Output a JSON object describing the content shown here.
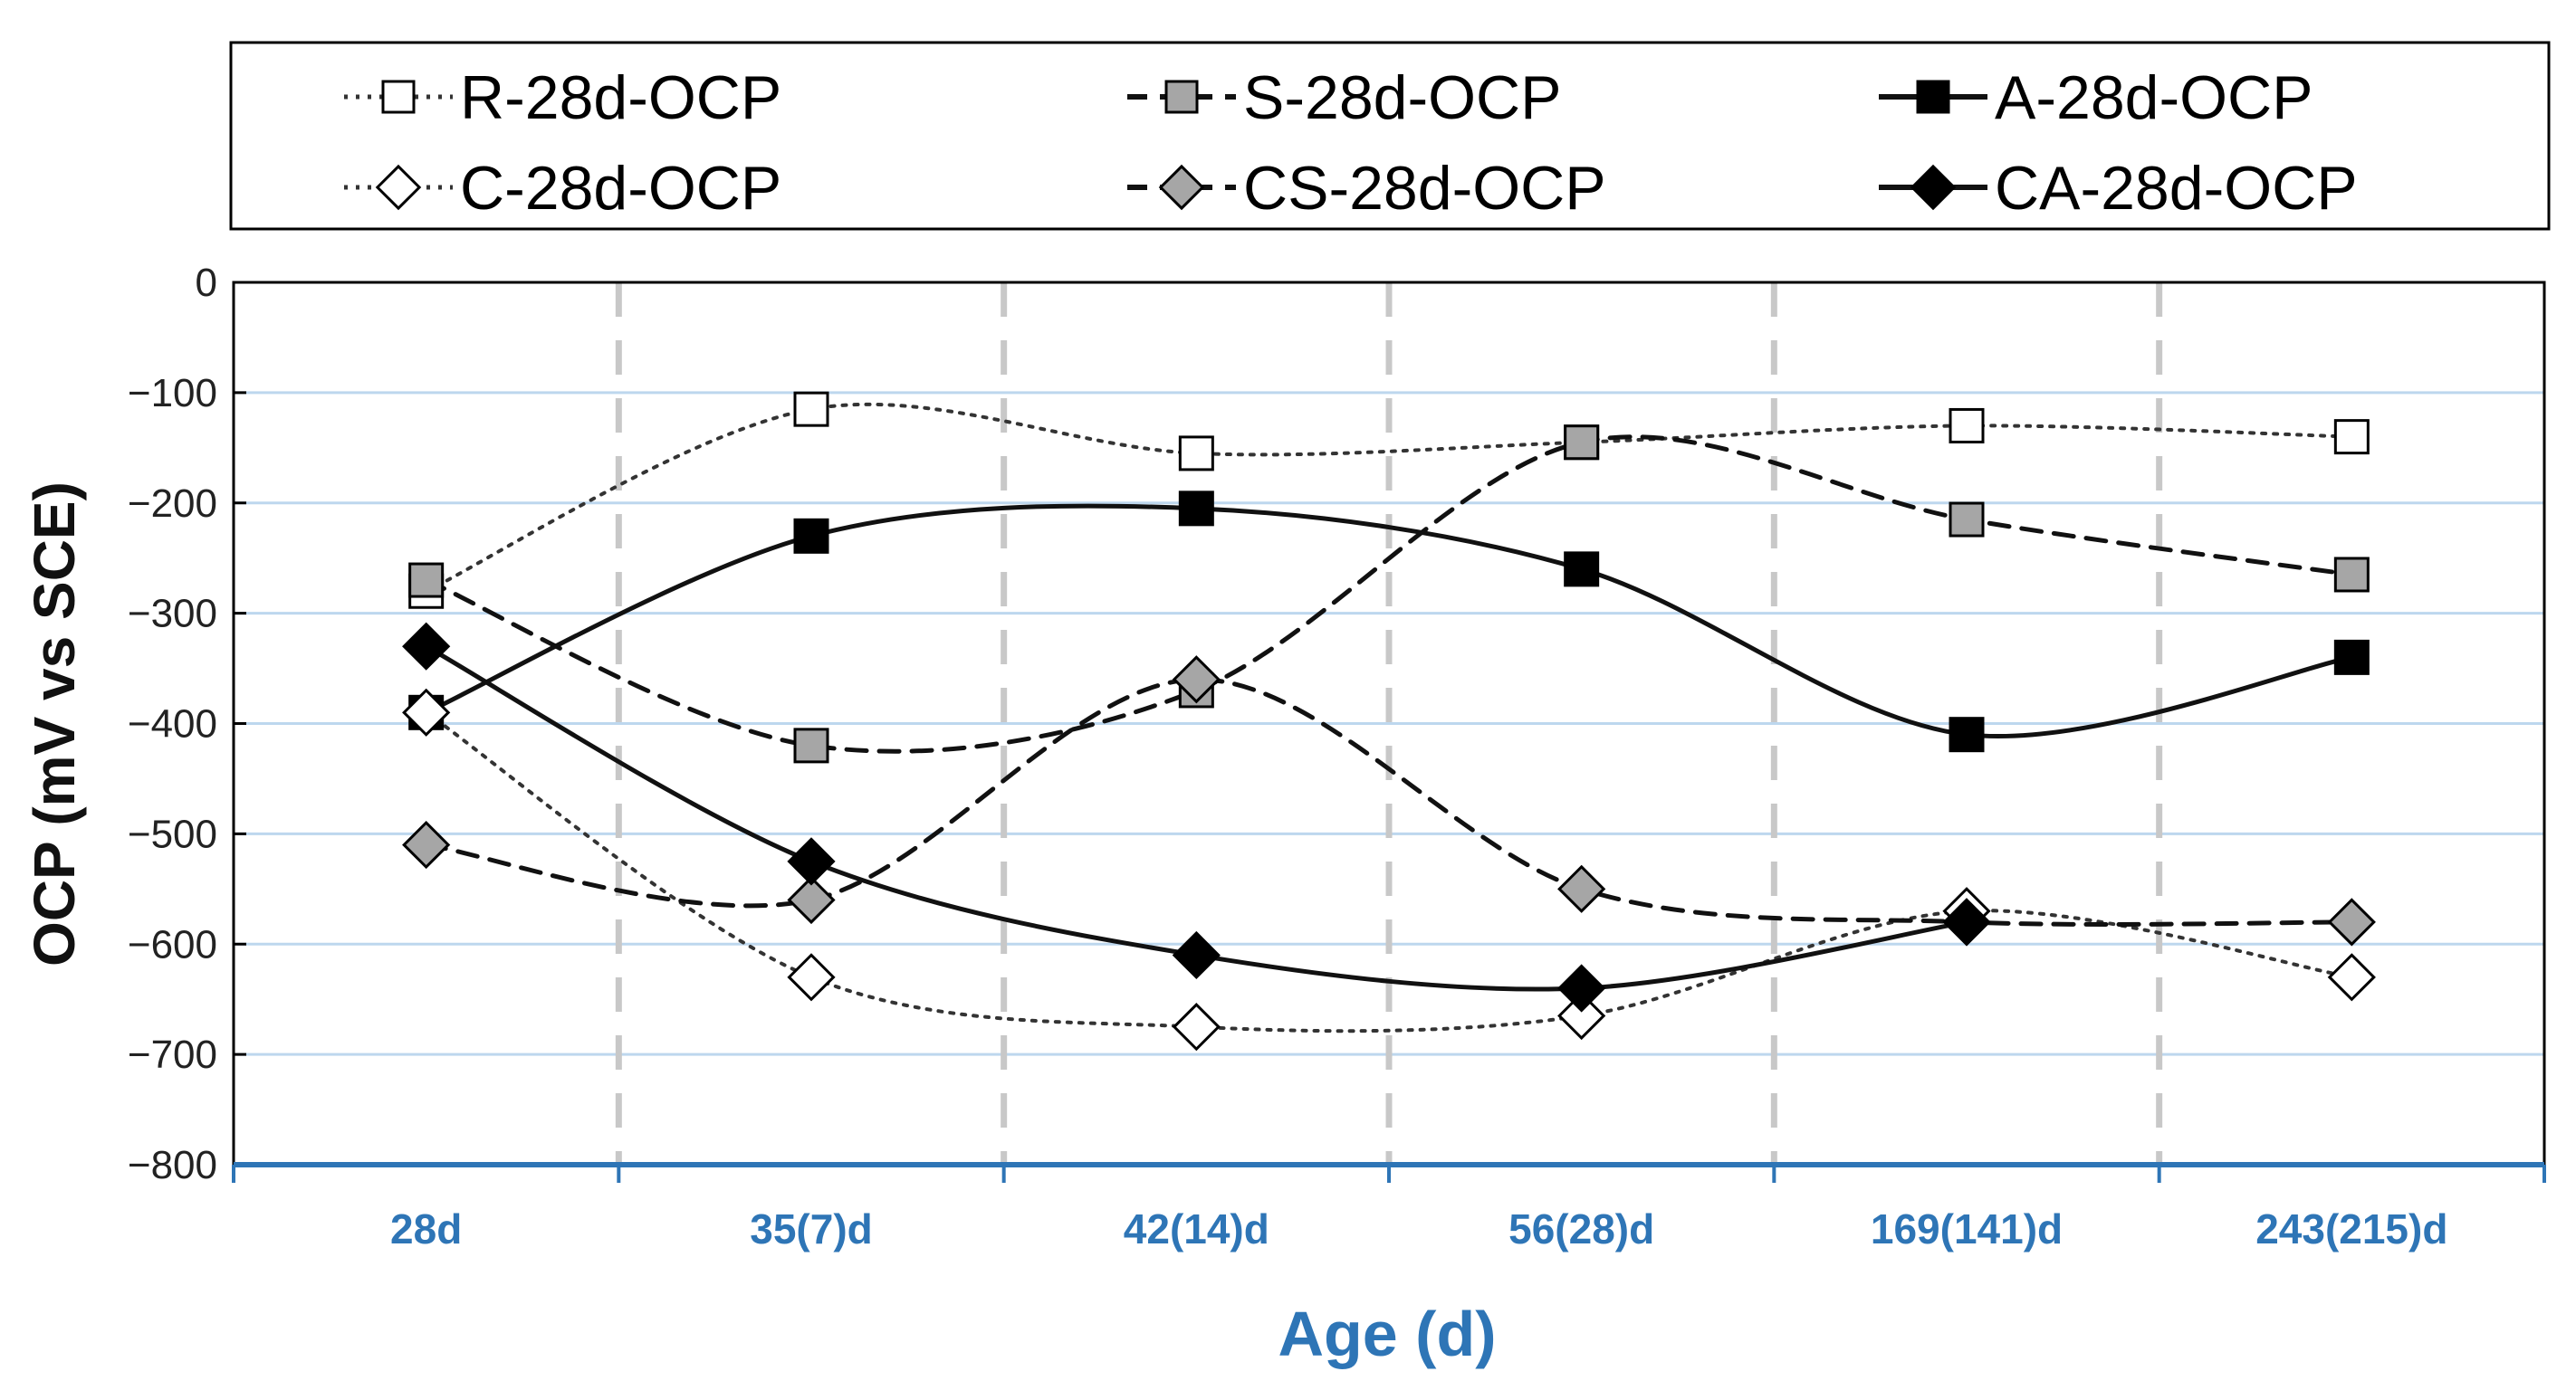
{
  "chart_data": {
    "type": "line",
    "title": "",
    "xlabel": "Age (d)",
    "ylabel": "OCP (mV vs SCE)",
    "ylim": [
      -800,
      0
    ],
    "yticks": [
      0,
      -100,
      -200,
      -300,
      -400,
      -500,
      -600,
      -700,
      -800
    ],
    "ytick_labels": [
      "0",
      "−100",
      "−200",
      "−300",
      "−400",
      "−500",
      "−600",
      "−700",
      "−800"
    ],
    "categories": [
      "28d",
      "35(7)d",
      "42(14)d",
      "56(28)d",
      "169(141)d",
      "243(215)d"
    ],
    "grid": true,
    "legend_position": "top",
    "series": [
      {
        "name": "R-28d-OCP",
        "values": [
          -280,
          -115,
          -155,
          -145,
          -130,
          -140
        ],
        "marker": "square",
        "fill": "#ffffff",
        "line": "dotted",
        "color": "#333333"
      },
      {
        "name": "S-28d-OCP",
        "values": [
          -270,
          -420,
          -370,
          -145,
          -215,
          -265
        ],
        "marker": "square",
        "fill": "#a6a6a6",
        "line": "dashed",
        "color": "#111111"
      },
      {
        "name": "A-28d-OCP",
        "values": [
          -390,
          -230,
          -205,
          -260,
          -410,
          -340
        ],
        "marker": "square",
        "fill": "#000000",
        "line": "solid",
        "color": "#111111"
      },
      {
        "name": "C-28d-OCP",
        "values": [
          -390,
          -630,
          -675,
          -665,
          -570,
          -630
        ],
        "marker": "diamond",
        "fill": "#ffffff",
        "line": "dotted",
        "color": "#333333"
      },
      {
        "name": "CS-28d-OCP",
        "values": [
          -510,
          -560,
          -360,
          -550,
          -580,
          -580
        ],
        "marker": "diamond",
        "fill": "#a6a6a6",
        "line": "dashed",
        "color": "#111111"
      },
      {
        "name": "CA-28d-OCP",
        "values": [
          -330,
          -525,
          -610,
          -640,
          -580,
          null
        ],
        "marker": "diamond",
        "fill": "#000000",
        "line": "solid",
        "color": "#111111"
      }
    ]
  },
  "colors": {
    "axis_accent": "#2e75b6",
    "gridline": "#bdd7ee",
    "separator": "#c8c8c8"
  }
}
